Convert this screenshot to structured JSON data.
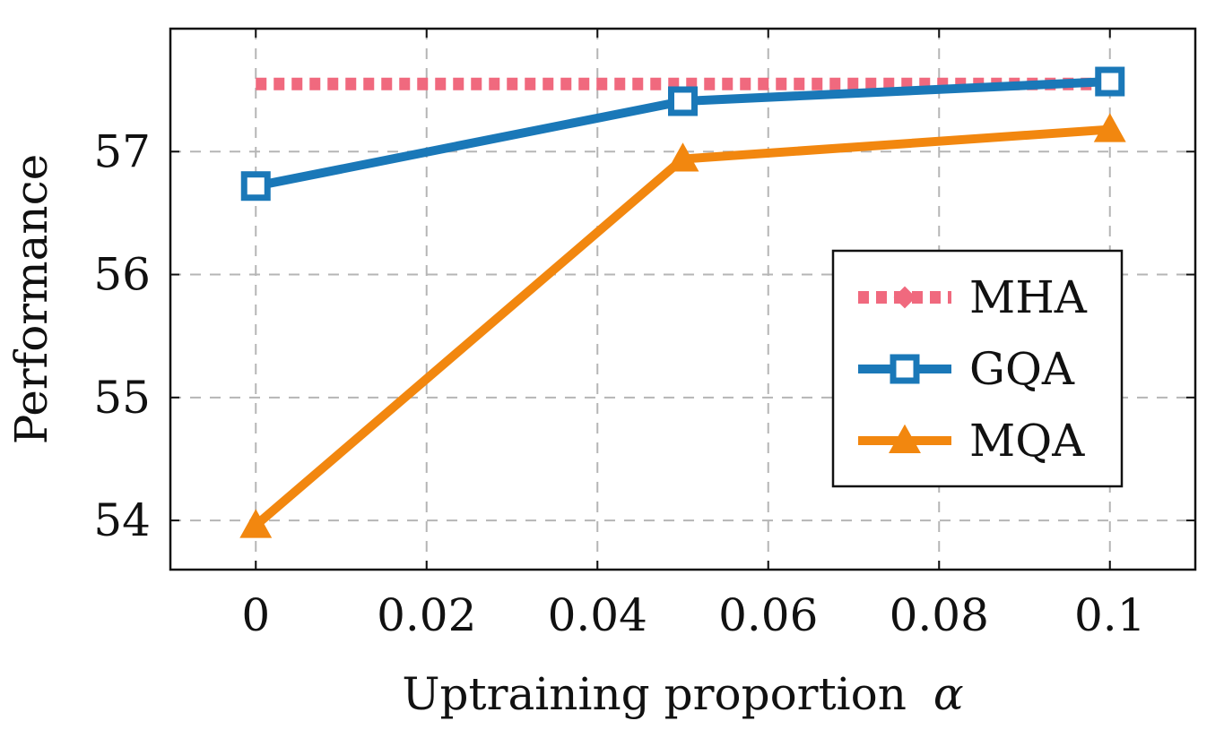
{
  "chart_data": {
    "type": "line",
    "title": "",
    "xlabel": "Uptraining proportion",
    "xlabel_symbol": "α",
    "ylabel": "Performance",
    "xlim": [
      -0.01,
      0.11
    ],
    "ylim": [
      53.6,
      58.0
    ],
    "x_ticks": [
      0,
      0.02,
      0.04,
      0.06,
      0.08,
      0.1
    ],
    "x_tick_labels": [
      "0",
      "0.02",
      "0.04",
      "0.06",
      "0.08",
      "0.1"
    ],
    "y_ticks": [
      54,
      55,
      56,
      57
    ],
    "y_tick_labels": [
      "54",
      "55",
      "56",
      "57"
    ],
    "grid": true,
    "legend_position": "center-right",
    "series": [
      {
        "name": "MHA",
        "x": [
          0,
          0.1
        ],
        "values": [
          57.55,
          57.55
        ],
        "color": "#f0697e",
        "style": "dotted",
        "marker": "diamond"
      },
      {
        "name": "GQA",
        "x": [
          0,
          0.05,
          0.1
        ],
        "values": [
          56.72,
          57.41,
          57.57
        ],
        "color": "#1a78b8",
        "style": "solid",
        "marker": "square"
      },
      {
        "name": "MQA",
        "x": [
          0,
          0.05,
          0.1
        ],
        "values": [
          53.96,
          56.94,
          57.18
        ],
        "color": "#f2870f",
        "style": "solid",
        "marker": "triangle"
      }
    ]
  }
}
